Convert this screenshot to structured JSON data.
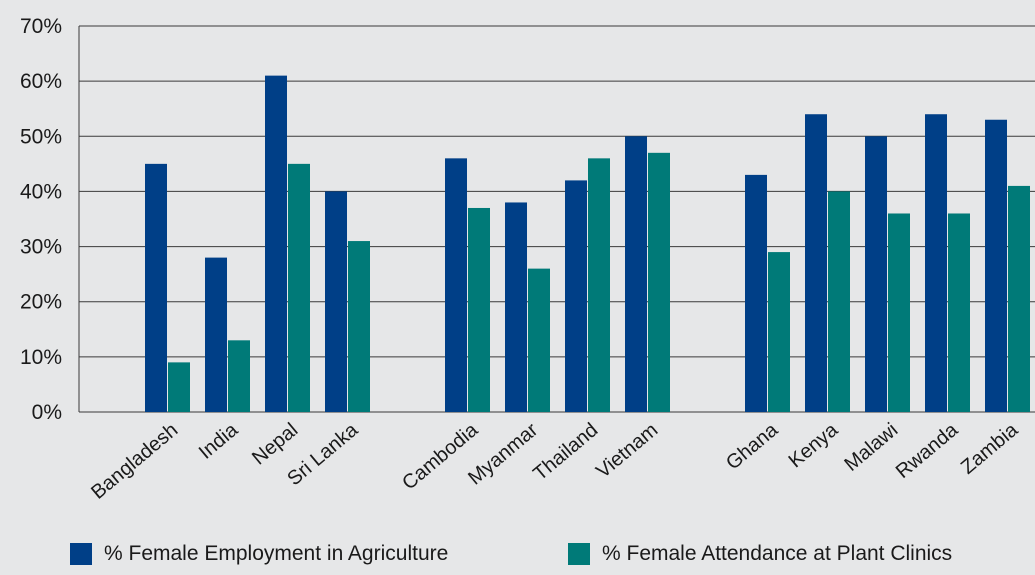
{
  "chart_data": {
    "type": "bar",
    "ylim": [
      0,
      70
    ],
    "yticks": [
      "0%",
      "10%",
      "20%",
      "30%",
      "40%",
      "50%",
      "60%",
      "70%"
    ],
    "grid": "horizontal",
    "legend_position": "bottom",
    "groups": [
      [
        "Bangladesh",
        "India",
        "Nepal",
        "Sri Lanka"
      ],
      [
        "Cambodia",
        "Myanmar",
        "Thailand",
        "Vietnam"
      ],
      [
        "Ghana",
        "Kenya",
        "Malawi",
        "Rwanda",
        "Zambia"
      ]
    ],
    "categories": [
      "Bangladesh",
      "India",
      "Nepal",
      "Sri Lanka",
      "Cambodia",
      "Myanmar",
      "Thailand",
      "Vietnam",
      "Ghana",
      "Kenya",
      "Malawi",
      "Rwanda",
      "Zambia"
    ],
    "series": [
      {
        "name": "% Female Employment in Agriculture",
        "color": "#003f87",
        "values": [
          45,
          28,
          61,
          40,
          46,
          38,
          42,
          50,
          43,
          54,
          50,
          54,
          53
        ]
      },
      {
        "name": "% Female Attendance at Plant Clinics",
        "color": "#007a78",
        "values": [
          9,
          13,
          45,
          31,
          37,
          26,
          46,
          47,
          29,
          40,
          36,
          36,
          41
        ]
      }
    ]
  }
}
